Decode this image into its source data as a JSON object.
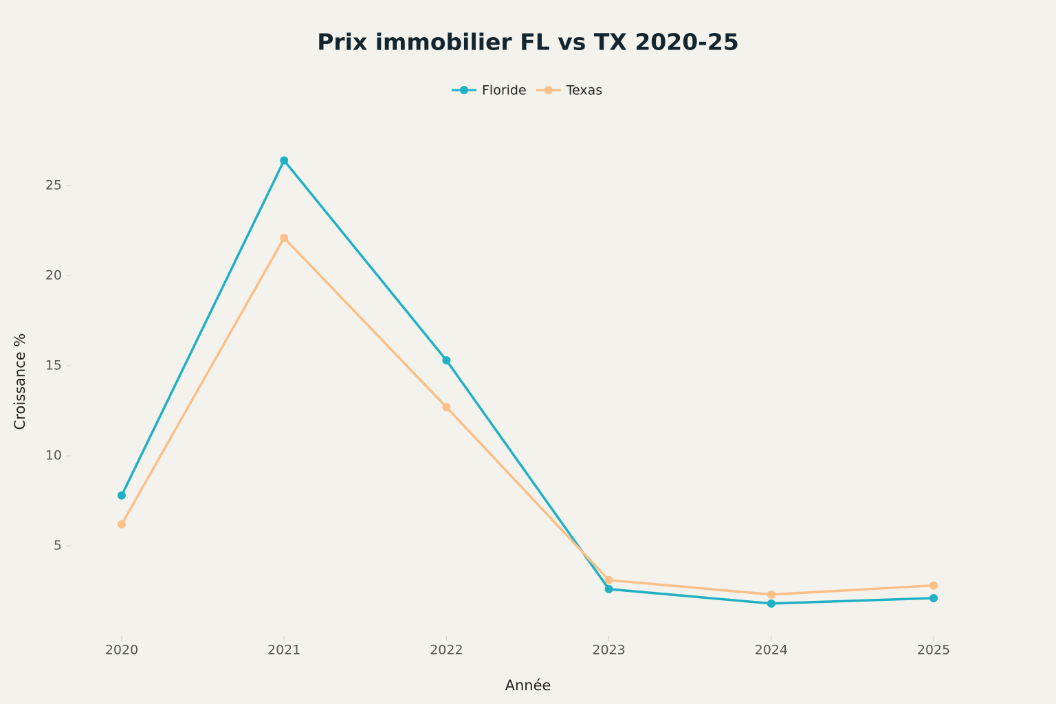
{
  "chart_data": {
    "type": "line",
    "title": "Prix immobilier FL vs TX 2020-25",
    "x_label": "Année",
    "y_label": "Croissance %",
    "categories": [
      "2020",
      "2021",
      "2022",
      "2023",
      "2024",
      "2025"
    ],
    "series": [
      {
        "name": "Floride",
        "color": "#1fb0c4",
        "values": [
          7.8,
          26.4,
          15.3,
          2.6,
          1.8,
          2.1
        ]
      },
      {
        "name": "Texas",
        "color": "#fbbf87",
        "values": [
          6.2,
          22.1,
          12.7,
          3.1,
          2.3,
          2.8
        ]
      }
    ],
    "ylim": [
      0,
      28
    ],
    "yticks": [
      5,
      10,
      15,
      20,
      25
    ],
    "grid": false,
    "legend": "top"
  }
}
